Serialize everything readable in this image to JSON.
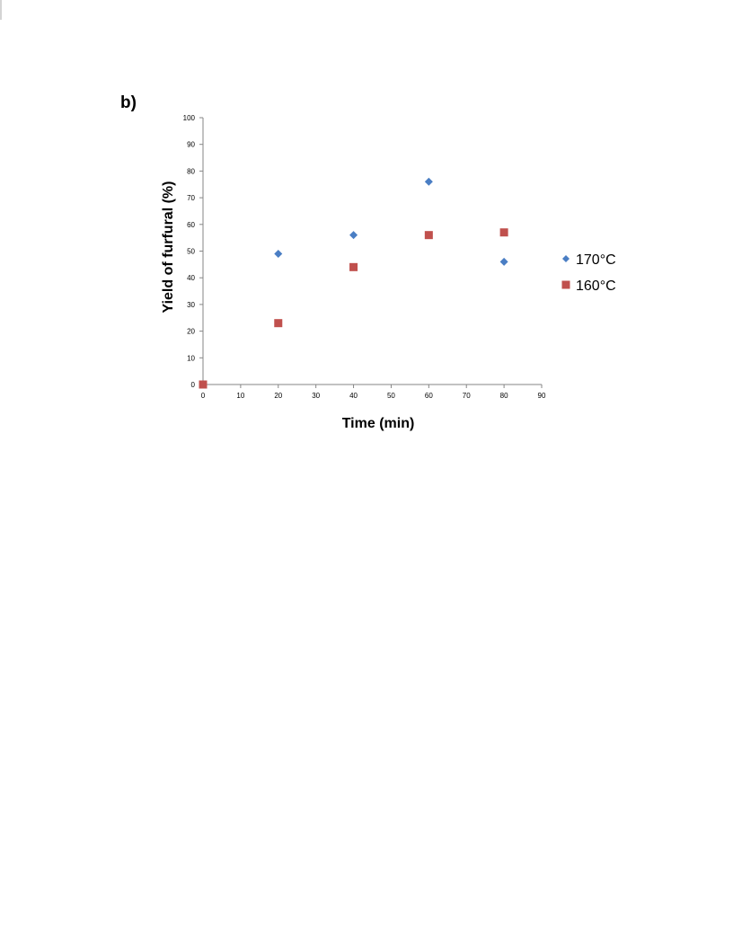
{
  "panel_label": "b)",
  "chart_data": {
    "type": "scatter",
    "title": "",
    "xlabel": "Time (min)",
    "ylabel": "Yield of furfural (%)",
    "xlim": [
      0,
      90
    ],
    "ylim": [
      0,
      100
    ],
    "x_ticks": [
      0,
      10,
      20,
      30,
      40,
      50,
      60,
      70,
      80,
      90
    ],
    "y_ticks": [
      0,
      10,
      20,
      30,
      40,
      50,
      60,
      70,
      80,
      90,
      100
    ],
    "grid": false,
    "legend_position": "right",
    "series": [
      {
        "name": "170°C",
        "marker": "diamond",
        "color": "#4a7ec4",
        "points": [
          [
            20,
            49
          ],
          [
            40,
            56
          ],
          [
            60,
            76
          ],
          [
            80,
            46
          ]
        ]
      },
      {
        "name": "160°C",
        "marker": "square",
        "color": "#c0504d",
        "points": [
          [
            0,
            0
          ],
          [
            20,
            23
          ],
          [
            40,
            44
          ],
          [
            60,
            56
          ],
          [
            80,
            57
          ]
        ]
      }
    ]
  }
}
